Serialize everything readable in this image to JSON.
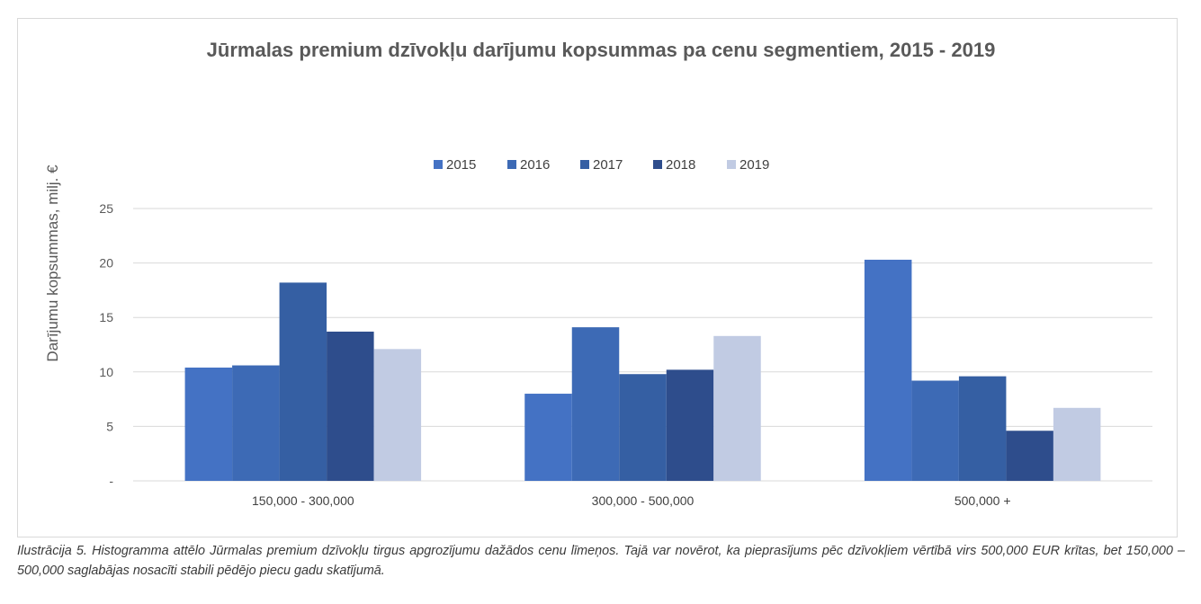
{
  "chart_data": {
    "type": "bar",
    "title": "Jūrmalas premium dzīvokļu darījumu kopsummas pa cenu segmentiem, 2015 - 2019",
    "xlabel": "",
    "ylabel": "Darījumu kopsummas, milj. €",
    "categories": [
      "150,000 - 300,000",
      "300,000 - 500,000",
      "500,000 +"
    ],
    "ylim": [
      0,
      25
    ],
    "yticks": [
      "-",
      "5",
      "10",
      "15",
      "20",
      "25"
    ],
    "grid": true,
    "legend_position": "top",
    "series": [
      {
        "name": "2015",
        "color": "#4472c4",
        "values": [
          10.4,
          8.0,
          20.3
        ]
      },
      {
        "name": "2016",
        "color": "#3d6ab5",
        "values": [
          10.6,
          14.1,
          9.2
        ]
      },
      {
        "name": "2017",
        "color": "#355fa3",
        "values": [
          18.2,
          9.8,
          9.6
        ]
      },
      {
        "name": "2018",
        "color": "#2e4d8c",
        "values": [
          13.7,
          10.2,
          4.6
        ]
      },
      {
        "name": "2019",
        "color": "#c1cbe3",
        "values": [
          12.1,
          13.3,
          6.7
        ]
      }
    ]
  },
  "caption": "Ilustrācija 5. Histogramma attēlo Jūrmalas premium dzīvokļu tirgus apgrozījumu dažādos cenu līmeņos. Tajā var novērot, ka pieprasījums pēc dzīvokļiem vērtībā virs 500,000 EUR krītas, bet 150,000 – 500,000 saglabājas nosacīti stabili pēdējo piecu gadu skatījumā."
}
